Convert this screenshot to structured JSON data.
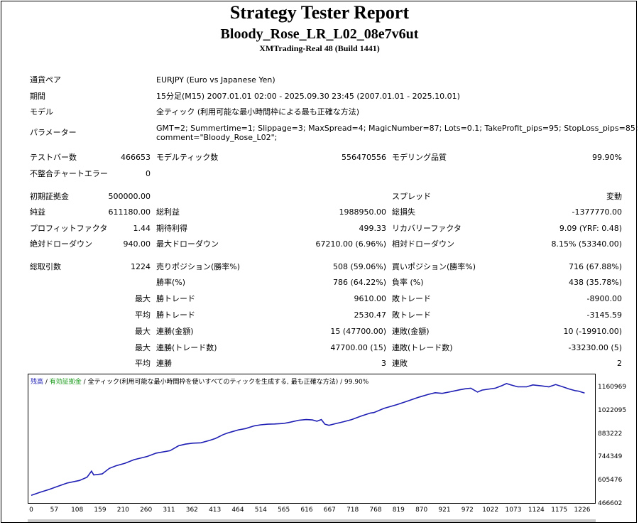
{
  "header": {
    "title": "Strategy Tester Report",
    "ea_name": "Bloody_Rose_LR_L02_08e7v6ut",
    "server": "XMTrading-Real 48 (Build 1441)"
  },
  "info": {
    "symbol_label": "通貨ペア",
    "symbol_value": "EURJPY (Euro vs Japanese Yen)",
    "period_label": "期間",
    "period_value": "15分足(M15) 2007.01.01 02:00 - 2025.09.30 23:45 (2007.01.01 - 2025.10.01)",
    "model_label": "モデル",
    "model_value": "全ティック (利用可能な最小時間枠による最も正確な方法)",
    "params_label": "パラメーター",
    "params_line1": "GMT=2; Summertime=1; Slippage=3; MaxSpread=4; MagicNumber=87; Lots=0.1; TakeProfit_pips=95; StopLoss_pips=85;",
    "params_line2": "comment=\"Bloody_Rose_L02\";"
  },
  "stats": {
    "bars_label": "テストバー数",
    "bars_value": "466653",
    "ticks_label": "モデルティック数",
    "ticks_value": "556470556",
    "quality_label": "モデリング品質",
    "quality_value": "99.90%",
    "mismatch_label": "不整合チャートエラー",
    "mismatch_value": "0",
    "deposit_label": "初期証拠金",
    "deposit_value": "500000.00",
    "spread_label": "スプレッド",
    "spread_value": "変動",
    "net_label": "純益",
    "net_value": "611180.00",
    "gross_profit_label": "総利益",
    "gross_profit_value": "1988950.00",
    "gross_loss_label": "総損失",
    "gross_loss_value": "-1377770.00",
    "pf_label": "プロフィットファクタ",
    "pf_value": "1.44",
    "expected_label": "期待利得",
    "expected_value": "499.33",
    "recovery_label": "リカバリーファクタ",
    "recovery_value": "9.09 (YRF: 0.48)",
    "abs_dd_label": "絶対ドローダウン",
    "abs_dd_value": "940.00",
    "max_dd_label": "最大ドローダウン",
    "max_dd_value": "67210.00 (6.96%)",
    "rel_dd_label": "相対ドローダウン",
    "rel_dd_value": "8.15% (53340.00)",
    "trades_label": "総取引数",
    "trades_value": "1224",
    "short_label": "売りポジション(勝率%)",
    "short_value": "508 (59.06%)",
    "long_label": "買いポジション(勝率%)",
    "long_value": "716 (67.88%)",
    "win_pct_label": "勝率(%)",
    "win_pct_value": "786 (64.22%)",
    "loss_pct_label": "負率 (%)",
    "loss_pct_value": "438 (35.78%)",
    "max_word": "最大",
    "avg_word": "平均",
    "max_win_label": "勝トレード",
    "max_win_value": "9610.00",
    "max_loss_label": "敗トレード",
    "max_loss_value": "-8900.00",
    "avg_win_label": "勝トレード",
    "avg_win_value": "2530.47",
    "avg_loss_label": "敗トレード",
    "avg_loss_value": "-3145.59",
    "max_consec_win_label": "連勝(金額)",
    "max_consec_win_value": "15 (47700.00)",
    "max_consec_loss_label": "連敗(金額)",
    "max_consec_loss_value": "10 (-19910.00)",
    "max_consec_profit_label": "連勝(トレード数)",
    "max_consec_profit_value": "47700.00 (15)",
    "max_consec_lossamt_label": "連敗(トレード数)",
    "max_consec_lossamt_value": "-33230.00 (5)",
    "avg_consec_win_label": "連勝",
    "avg_consec_win_value": "3",
    "avg_consec_loss_label": "連敗",
    "avg_consec_loss_value": "2"
  },
  "chart_legend": {
    "balance": "残高",
    "sep1": " / ",
    "equity": "有効証拠金",
    "sep2": " / ",
    "model": "全ティック(利用可能な最小時間枠を使いすべてのティックを生成する, 最も正確な方法)",
    "sep3": " / ",
    "quality": "99.90%"
  },
  "colors": {
    "balance": "#1e1eb4",
    "equity": "#1a9a1a",
    "axis": "#000000"
  },
  "chart_data": {
    "type": "line",
    "title": "",
    "xlabel": "",
    "ylabel": "",
    "x_ticks": [
      "0",
      "57",
      "108",
      "159",
      "210",
      "260",
      "311",
      "362",
      "413",
      "464",
      "514",
      "565",
      "616",
      "667",
      "718",
      "768",
      "819",
      "870",
      "921",
      "972",
      "1022",
      "1073",
      "1124",
      "1175",
      "1226"
    ],
    "y_ticks": [
      "1160969",
      "1022095",
      "883222",
      "744349",
      "605476",
      "466602"
    ],
    "ylim": [
      466602,
      1160969
    ],
    "xlim": [
      0,
      1260
    ],
    "series": [
      {
        "values": [
          [
            0,
            487000
          ],
          [
            20,
            506000
          ],
          [
            40,
            523000
          ],
          [
            57,
            540000
          ],
          [
            80,
            562000
          ],
          [
            108,
            578000
          ],
          [
            125,
            598000
          ],
          [
            135,
            635000
          ],
          [
            140,
            612000
          ],
          [
            159,
            618000
          ],
          [
            175,
            652000
          ],
          [
            190,
            668000
          ],
          [
            210,
            683000
          ],
          [
            230,
            705000
          ],
          [
            260,
            725000
          ],
          [
            280,
            745000
          ],
          [
            311,
            760000
          ],
          [
            330,
            790000
          ],
          [
            345,
            800000
          ],
          [
            362,
            806000
          ],
          [
            380,
            808000
          ],
          [
            400,
            823000
          ],
          [
            413,
            835000
          ],
          [
            430,
            858000
          ],
          [
            440,
            868000
          ],
          [
            450,
            876000
          ],
          [
            464,
            887000
          ],
          [
            480,
            895000
          ],
          [
            500,
            912000
          ],
          [
            514,
            918000
          ],
          [
            530,
            922000
          ],
          [
            545,
            923000
          ],
          [
            565,
            926000
          ],
          [
            580,
            934000
          ],
          [
            600,
            946000
          ],
          [
            616,
            950000
          ],
          [
            630,
            948000
          ],
          [
            640,
            940000
          ],
          [
            650,
            950000
          ],
          [
            658,
            922000
          ],
          [
            667,
            915000
          ],
          [
            680,
            924000
          ],
          [
            700,
            937000
          ],
          [
            718,
            950000
          ],
          [
            740,
            972000
          ],
          [
            760,
            990000
          ],
          [
            768,
            993000
          ],
          [
            790,
            1018000
          ],
          [
            819,
            1041000
          ],
          [
            840,
            1060000
          ],
          [
            860,
            1079000
          ],
          [
            870,
            1088000
          ],
          [
            890,
            1104000
          ],
          [
            905,
            1114000
          ],
          [
            921,
            1110000
          ],
          [
            940,
            1120000
          ],
          [
            960,
            1132000
          ],
          [
            972,
            1138000
          ],
          [
            985,
            1142000
          ],
          [
            1000,
            1118000
          ],
          [
            1010,
            1130000
          ],
          [
            1022,
            1135000
          ],
          [
            1040,
            1142000
          ],
          [
            1055,
            1158000
          ],
          [
            1065,
            1170000
          ],
          [
            1073,
            1163000
          ],
          [
            1090,
            1150000
          ],
          [
            1110,
            1150000
          ],
          [
            1124,
            1162000
          ],
          [
            1140,
            1157000
          ],
          [
            1160,
            1150000
          ],
          [
            1175,
            1164000
          ],
          [
            1190,
            1151000
          ],
          [
            1205,
            1137000
          ],
          [
            1220,
            1126000
          ],
          [
            1226,
            1124000
          ],
          [
            1240,
            1112000
          ]
        ]
      }
    ]
  }
}
